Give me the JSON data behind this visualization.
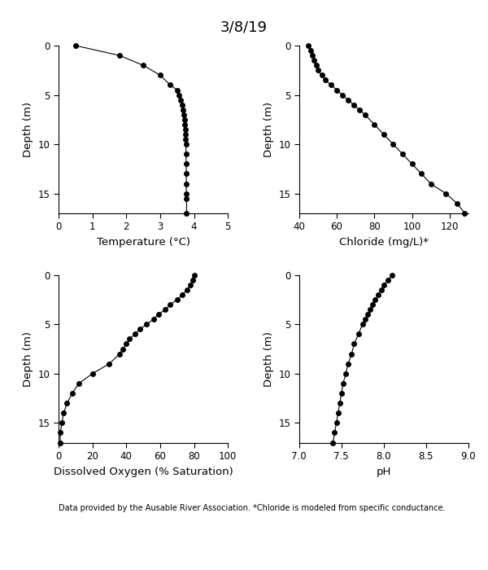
{
  "title": "3/8/19",
  "footnote": "Data provided by the Ausable River Association. *Chloride is modeled from specific conductance.",
  "temp": {
    "depth": [
      0,
      1,
      2,
      3,
      4,
      4.5,
      5,
      5.5,
      6,
      6.5,
      7,
      7.5,
      8,
      8.5,
      9,
      9.5,
      10,
      11,
      12,
      13,
      14,
      15,
      15.5,
      17
    ],
    "value": [
      0.5,
      1.8,
      2.5,
      3.0,
      3.3,
      3.5,
      3.55,
      3.6,
      3.65,
      3.68,
      3.7,
      3.72,
      3.73,
      3.74,
      3.75,
      3.75,
      3.76,
      3.76,
      3.77,
      3.77,
      3.77,
      3.77,
      3.78,
      3.78
    ],
    "xlabel": "Temperature (°C)",
    "xlim": [
      0,
      5
    ],
    "xticks": [
      0,
      1,
      2,
      3,
      4,
      5
    ],
    "ylim": [
      17,
      0
    ],
    "yticks": [
      0,
      5,
      10,
      15
    ]
  },
  "chloride": {
    "depth": [
      0,
      0.5,
      1,
      1.5,
      2,
      2.5,
      3,
      3.5,
      4,
      4.5,
      5,
      5.5,
      6,
      6.5,
      7,
      8,
      9,
      10,
      11,
      12,
      13,
      14,
      15,
      16,
      17
    ],
    "value": [
      45,
      46,
      47,
      48,
      49,
      50,
      52,
      54,
      57,
      60,
      63,
      66,
      69,
      72,
      75,
      80,
      85,
      90,
      95,
      100,
      105,
      110,
      118,
      124,
      128
    ],
    "xlabel": "Chloride (mg/L)*",
    "xlim": [
      40,
      130
    ],
    "xticks": [
      40,
      60,
      80,
      100,
      120
    ],
    "ylim": [
      17,
      0
    ],
    "yticks": [
      0,
      5,
      10,
      15
    ]
  },
  "do": {
    "depth": [
      0,
      0.5,
      1,
      1.5,
      2,
      2.5,
      3,
      3.5,
      4,
      4.5,
      5,
      5.5,
      6,
      6.5,
      7,
      7.5,
      8,
      9,
      10,
      11,
      12,
      13,
      14,
      15,
      16,
      17
    ],
    "value": [
      80,
      79,
      78,
      76,
      73,
      70,
      66,
      63,
      59,
      56,
      52,
      48,
      45,
      42,
      40,
      38,
      36,
      30,
      20,
      12,
      8,
      5,
      3,
      2,
      1,
      1
    ],
    "xlabel": "Dissolved Oxygen (% Saturation)",
    "xlim": [
      0,
      100
    ],
    "xticks": [
      0,
      20,
      40,
      60,
      80,
      100
    ],
    "ylim": [
      17,
      0
    ],
    "yticks": [
      0,
      5,
      10,
      15
    ]
  },
  "ph": {
    "depth": [
      0,
      0.5,
      1,
      1.5,
      2,
      2.5,
      3,
      3.5,
      4,
      4.5,
      5,
      6,
      7,
      8,
      9,
      10,
      11,
      12,
      13,
      14,
      15,
      16,
      17
    ],
    "value": [
      8.1,
      8.05,
      8.0,
      7.97,
      7.93,
      7.9,
      7.87,
      7.84,
      7.81,
      7.78,
      7.75,
      7.7,
      7.65,
      7.62,
      7.58,
      7.55,
      7.52,
      7.5,
      7.48,
      7.46,
      7.44,
      7.42,
      7.4
    ],
    "xlabel": "pH",
    "xlim": [
      7.0,
      9.0
    ],
    "xticks": [
      7.0,
      7.5,
      8.0,
      8.5,
      9.0
    ],
    "ylim": [
      17,
      0
    ],
    "yticks": [
      0,
      5,
      10,
      15
    ]
  },
  "ylabel": "Depth (m)",
  "line_color": "black",
  "marker": "o",
  "markersize": 4,
  "markercolor": "black",
  "linewidth": 0.8,
  "bg_color": "white",
  "tick_fontsize": 8.5,
  "label_fontsize": 9.5,
  "title_fontsize": 13
}
